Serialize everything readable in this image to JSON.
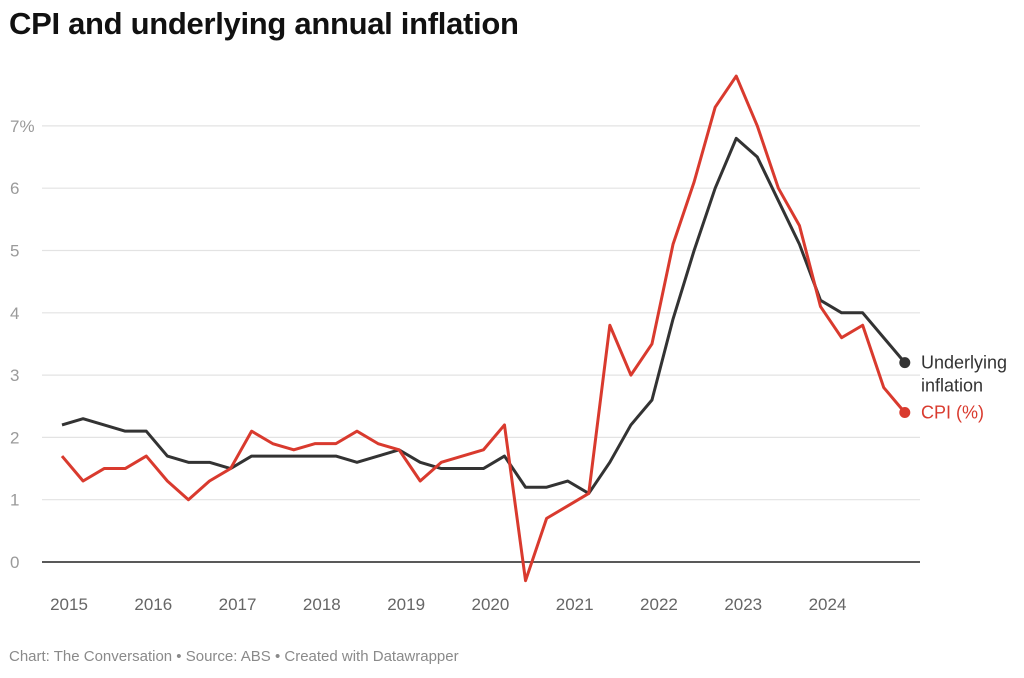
{
  "title": "CPI and underlying annual inflation",
  "footer": "Chart: The Conversation • Source: ABS • Created with Datawrapper",
  "chart_data": {
    "type": "line",
    "title": "CPI and underlying annual inflation",
    "x_start": "2015 Q1",
    "frequency": "quarterly",
    "x_tick_labels": [
      "2015",
      "2016",
      "2017",
      "2018",
      "2019",
      "2020",
      "2021",
      "2022",
      "2023",
      "2024"
    ],
    "y_tick_labels": [
      "0",
      "1",
      "2",
      "3",
      "4",
      "5",
      "6",
      "7%"
    ],
    "ylim": [
      0,
      7
    ],
    "grid": true,
    "series": [
      {
        "name": "Underlying inflation",
        "color": "#333333",
        "values": [
          2.2,
          2.3,
          2.2,
          2.1,
          2.1,
          1.7,
          1.6,
          1.6,
          1.5,
          1.7,
          1.7,
          1.7,
          1.7,
          1.7,
          1.6,
          1.7,
          1.8,
          1.6,
          1.5,
          1.5,
          1.5,
          1.7,
          1.2,
          1.2,
          1.3,
          1.1,
          1.6,
          2.2,
          2.6,
          3.9,
          5.0,
          6.0,
          6.8,
          6.5,
          5.8,
          5.1,
          4.2,
          4.0,
          4.0,
          3.6,
          3.2
        ]
      },
      {
        "name": "CPI (%)",
        "color": "#d93a2e",
        "values": [
          1.7,
          1.3,
          1.5,
          1.5,
          1.7,
          1.3,
          1.0,
          1.3,
          1.5,
          2.1,
          1.9,
          1.8,
          1.9,
          1.9,
          2.1,
          1.9,
          1.8,
          1.3,
          1.6,
          1.7,
          1.8,
          2.2,
          -0.3,
          0.7,
          0.9,
          1.1,
          3.8,
          3.0,
          3.5,
          5.1,
          6.1,
          7.3,
          7.8,
          7.0,
          6.0,
          5.4,
          4.1,
          3.6,
          3.8,
          2.8,
          2.4
        ]
      }
    ],
    "series_labels": [
      [
        "Underlying",
        "inflation"
      ],
      [
        "CPI (%)"
      ]
    ]
  }
}
